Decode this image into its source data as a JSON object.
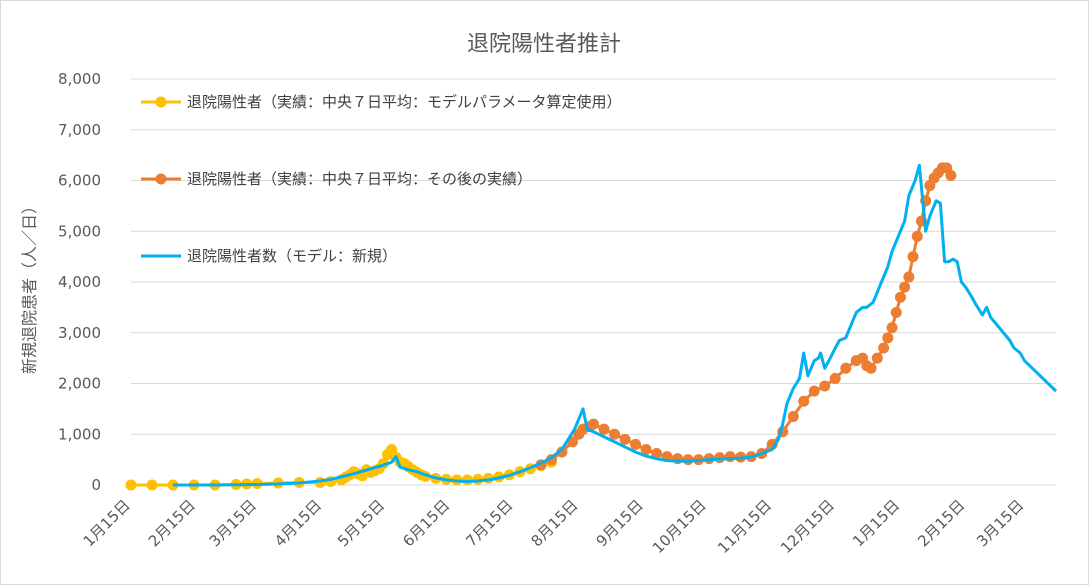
{
  "chart_data": {
    "type": "line",
    "title": "退院陽性者推計",
    "xlabel": "",
    "ylabel": "新規退院患者（人／日）",
    "ylim": [
      0,
      8000
    ],
    "yticks": [
      0,
      1000,
      2000,
      3000,
      4000,
      5000,
      6000,
      7000,
      8000
    ],
    "ytick_labels": [
      "0",
      "1,000",
      "2,000",
      "3,000",
      "4,000",
      "5,000",
      "6,000",
      "7,000",
      "8,000"
    ],
    "xlim": [
      0,
      440
    ],
    "xticks": [
      0,
      31,
      60,
      91,
      121,
      152,
      182,
      213,
      244,
      274,
      305,
      335,
      366,
      397,
      425
    ],
    "xtick_labels": [
      "1月15日",
      "2月15日",
      "3月15日",
      "4月15日",
      "5月15日",
      "6月15日",
      "7月15日",
      "8月15日",
      "9月15日",
      "10月15日",
      "11月15日",
      "12月15日",
      "1月15日",
      "2月15日",
      "3月15日"
    ],
    "grid": true,
    "legend_position": "top-left",
    "series": [
      {
        "name": "退院陽性者（実績：中央７日平均：モデルパラメータ算定使用）",
        "color": "#FFC000",
        "style": "markers",
        "x": [
          0,
          10,
          20,
          30,
          40,
          50,
          55,
          60,
          70,
          80,
          90,
          95,
          100,
          102,
          104,
          106,
          108,
          110,
          112,
          114,
          116,
          118,
          120,
          122,
          124,
          126,
          128,
          130,
          132,
          134,
          136,
          138,
          140,
          145,
          150,
          155,
          160,
          165,
          170,
          175,
          180,
          185,
          190,
          195,
          200
        ],
        "y": [
          0,
          0,
          0,
          0,
          0,
          10,
          20,
          30,
          40,
          50,
          50,
          70,
          100,
          150,
          200,
          260,
          220,
          180,
          300,
          250,
          280,
          320,
          420,
          600,
          700,
          550,
          450,
          420,
          360,
          300,
          250,
          200,
          170,
          130,
          110,
          100,
          100,
          110,
          130,
          160,
          200,
          260,
          320,
          380,
          450
        ]
      },
      {
        "name": "退院陽性者（実績：中央７日平均：その後の実績）",
        "color": "#ED7D31",
        "style": "markers",
        "x": [
          195,
          200,
          205,
          210,
          213,
          215,
          218,
          220,
          225,
          230,
          235,
          240,
          245,
          250,
          255,
          260,
          265,
          270,
          275,
          280,
          285,
          290,
          295,
          300,
          305,
          310,
          315,
          320,
          325,
          330,
          335,
          340,
          345,
          348,
          350,
          352,
          355,
          358,
          360,
          362,
          364,
          366,
          368,
          370,
          372,
          374,
          376,
          378,
          380,
          382,
          384,
          386,
          388,
          390
        ],
        "y": [
          400,
          500,
          650,
          850,
          1000,
          1100,
          1150,
          1200,
          1100,
          1000,
          900,
          800,
          700,
          620,
          560,
          520,
          500,
          500,
          520,
          540,
          560,
          550,
          560,
          620,
          800,
          1050,
          1350,
          1650,
          1850,
          1950,
          2100,
          2300,
          2450,
          2500,
          2350,
          2300,
          2500,
          2700,
          2900,
          3100,
          3400,
          3700,
          3900,
          4100,
          4500,
          4900,
          5200,
          5600,
          5900,
          6050,
          6150,
          6250,
          6250,
          6100
        ]
      },
      {
        "name": "退院陽性者数（モデル：新規）",
        "color": "#00B0F0",
        "style": "line",
        "x": [
          20,
          30,
          40,
          50,
          60,
          70,
          80,
          90,
          95,
          100,
          105,
          110,
          115,
          120,
          124,
          126,
          128,
          132,
          136,
          140,
          145,
          150,
          155,
          160,
          165,
          170,
          175,
          180,
          185,
          190,
          195,
          200,
          205,
          208,
          211,
          213,
          215,
          217,
          220,
          225,
          230,
          235,
          240,
          245,
          250,
          255,
          260,
          265,
          270,
          275,
          280,
          285,
          290,
          295,
          300,
          305,
          308,
          310,
          312,
          315,
          318,
          320,
          322,
          325,
          327,
          328,
          330,
          332,
          335,
          337,
          340,
          343,
          345,
          348,
          350,
          353,
          355,
          357,
          360,
          362,
          365,
          368,
          370,
          373,
          375,
          378,
          380,
          383,
          385,
          387,
          389,
          391,
          393,
          395,
          397,
          400,
          402,
          405,
          407,
          409,
          412,
          415,
          418,
          420,
          423,
          425,
          430,
          435,
          440
        ],
        "y": [
          0,
          0,
          0,
          5,
          10,
          20,
          40,
          80,
          110,
          160,
          210,
          270,
          330,
          390,
          450,
          560,
          350,
          300,
          260,
          200,
          140,
          100,
          80,
          70,
          80,
          100,
          140,
          190,
          260,
          340,
          430,
          540,
          700,
          900,
          1100,
          1300,
          1500,
          1100,
          1050,
          950,
          850,
          750,
          650,
          570,
          520,
          480,
          470,
          470,
          480,
          500,
          510,
          520,
          530,
          550,
          620,
          700,
          900,
          1200,
          1600,
          1900,
          2100,
          2600,
          2150,
          2450,
          2500,
          2600,
          2300,
          2450,
          2700,
          2850,
          2900,
          3200,
          3400,
          3500,
          3500,
          3600,
          3800,
          4000,
          4300,
          4600,
          4900,
          5200,
          5700,
          6000,
          6300,
          5000,
          5300,
          5600,
          5550,
          4400,
          4400,
          4450,
          4400,
          4000,
          3900,
          3700,
          3550,
          3350,
          3500,
          3300,
          3150,
          3000,
          2850,
          2700,
          2600,
          2450,
          2250,
          2050,
          1850
        ]
      }
    ]
  }
}
